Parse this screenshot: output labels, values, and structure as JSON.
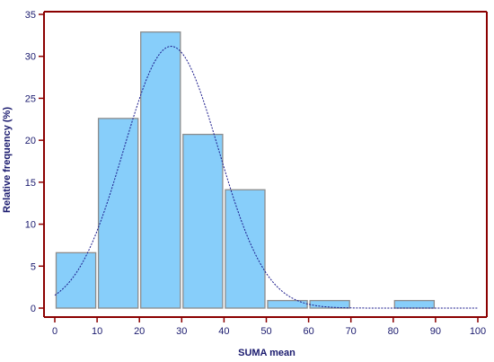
{
  "chart_data": {
    "type": "bar",
    "subtype": "histogram",
    "xlabel": "SUMA mean",
    "ylabel": "Relative frequency (%)",
    "xlim": [
      0,
      100
    ],
    "ylim": [
      0,
      35
    ],
    "x_ticks": [
      0,
      10,
      20,
      30,
      40,
      50,
      60,
      70,
      80,
      90,
      100
    ],
    "y_ticks": [
      0,
      5,
      10,
      15,
      20,
      25,
      30,
      35
    ],
    "bins": [
      {
        "from": 0,
        "to": 10,
        "value": 6.6
      },
      {
        "from": 10,
        "to": 20,
        "value": 22.6
      },
      {
        "from": 20,
        "to": 30,
        "value": 32.9
      },
      {
        "from": 30,
        "to": 40,
        "value": 20.7
      },
      {
        "from": 40,
        "to": 50,
        "value": 14.1
      },
      {
        "from": 50,
        "to": 60,
        "value": 0.9
      },
      {
        "from": 60,
        "to": 70,
        "value": 0.9
      },
      {
        "from": 70,
        "to": 80,
        "value": 0
      },
      {
        "from": 80,
        "to": 90,
        "value": 0.9
      },
      {
        "from": 90,
        "to": 100,
        "value": 0
      }
    ],
    "overlay": {
      "type": "normal-curve",
      "style": "dotted",
      "mean": 27.5,
      "sd": 11.2,
      "peak": 31.2
    },
    "grid": false,
    "colors": {
      "bar_fill": "#87cefa",
      "bar_stroke": "#8c8c8c",
      "axis": "#8b0000",
      "curve": "#1a1a8c",
      "text": "#1a1a6e"
    }
  }
}
